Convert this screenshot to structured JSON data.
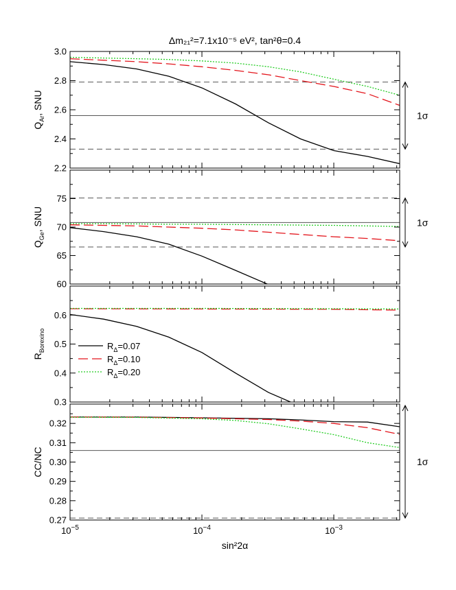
{
  "chart_data": {
    "type": "line",
    "title": "Δm₂₁²=7.1x10⁻⁵ eV², tan²θ=0.4",
    "xlabel": "sin²2α",
    "xscale": "log",
    "xlim": [
      1e-05,
      0.00316
    ],
    "xticks": [
      {
        "value": 1e-05,
        "base": "10",
        "exp": "−5"
      },
      {
        "value": 0.0001,
        "base": "10",
        "exp": "−4"
      },
      {
        "value": 0.001,
        "base": "10",
        "exp": "−3"
      }
    ],
    "legend": {
      "placement": "middle-left of third panel",
      "entries": [
        {
          "label": "R",
          "sub": "Δ",
          "value_text": "=0.07",
          "color": "#000000",
          "dash": "solid"
        },
        {
          "label": "R",
          "sub": "Δ",
          "value_text": "=0.10",
          "color": "#e3141b",
          "dash": "dashed"
        },
        {
          "label": "R",
          "sub": "Δ",
          "value_text": "=0.20",
          "color": "#22cc22",
          "dash": "dotted"
        }
      ]
    },
    "panels": [
      {
        "ylabel_main": "Q",
        "ylabel_sub": "Ar",
        "ylabel_rest": ", SNU",
        "ylim": [
          2.2,
          3.0
        ],
        "yticks": [
          2.2,
          2.4,
          2.6,
          2.8,
          3.0
        ],
        "ytick_labels": [
          "2.2",
          "2.4",
          "2.6",
          "2.8",
          "3.0"
        ],
        "reference": {
          "value": 2.56,
          "low": 2.33,
          "high": 2.79,
          "bar_low": 2.33,
          "bar_high": 2.79,
          "sigma_label": "1σ"
        },
        "series": [
          {
            "name": "R_Δ=0.07",
            "color": "#000000",
            "dash": "solid",
            "x": [
              1e-05,
              1.8e-05,
              3.2e-05,
              5.6e-05,
              0.0001,
              0.00018,
              0.00032,
              0.00056,
              0.001,
              0.0018,
              0.00316
            ],
            "y": [
              2.93,
              2.91,
              2.88,
              2.83,
              2.75,
              2.64,
              2.51,
              2.4,
              2.32,
              2.28,
              2.23
            ]
          },
          {
            "name": "R_Δ=0.10",
            "color": "#e3141b",
            "dash": "dashed",
            "x": [
              1e-05,
              1.8e-05,
              3.2e-05,
              5.6e-05,
              0.0001,
              0.00018,
              0.00032,
              0.00056,
              0.001,
              0.0018,
              0.00316
            ],
            "y": [
              2.95,
              2.94,
              2.93,
              2.915,
              2.895,
              2.87,
              2.84,
              2.8,
              2.76,
              2.71,
              2.63
            ]
          },
          {
            "name": "R_Δ=0.20",
            "color": "#22cc22",
            "dash": "dotted",
            "x": [
              1e-05,
              1.8e-05,
              3.2e-05,
              5.6e-05,
              0.0001,
              0.00018,
              0.00032,
              0.00056,
              0.001,
              0.0018,
              0.00316
            ],
            "y": [
              2.96,
              2.955,
              2.95,
              2.945,
              2.935,
              2.92,
              2.895,
              2.86,
              2.81,
              2.76,
              2.7
            ]
          }
        ]
      },
      {
        "ylabel_main": "Q",
        "ylabel_sub": "Ge",
        "ylabel_rest": ", SNU",
        "ylim": [
          60,
          80
        ],
        "yticks": [
          60,
          65,
          70,
          75
        ],
        "ytick_labels": [
          "60",
          "65",
          "70",
          "75"
        ],
        "reference": {
          "value": 70.8,
          "low": 66.5,
          "high": 75.1,
          "bar_low": 66.5,
          "bar_high": 75.1,
          "sigma_label": "1σ"
        },
        "series": [
          {
            "name": "R_Δ=0.07",
            "color": "#000000",
            "dash": "solid",
            "x": [
              1e-05,
              1.8e-05,
              3.2e-05,
              5.6e-05,
              0.0001,
              0.00018,
              0.00032
            ],
            "y": [
              69.9,
              69.2,
              68.3,
              67.0,
              64.9,
              62.4,
              59.9
            ]
          },
          {
            "name": "R_Δ=0.10",
            "color": "#e3141b",
            "dash": "dashed",
            "x": [
              1e-05,
              1.8e-05,
              3.2e-05,
              5.6e-05,
              0.0001,
              0.00018,
              0.00032,
              0.00056,
              0.001,
              0.0018,
              0.00316
            ],
            "y": [
              70.4,
              70.3,
              70.2,
              70.0,
              69.8,
              69.5,
              69.1,
              68.7,
              68.3,
              68.0,
              67.6
            ]
          },
          {
            "name": "R_Δ=0.20",
            "color": "#22cc22",
            "dash": "dotted",
            "x": [
              1e-05,
              1.8e-05,
              3.2e-05,
              5.6e-05,
              0.0001,
              0.00018,
              0.00032,
              0.00056,
              0.001,
              0.0018,
              0.00316
            ],
            "y": [
              70.6,
              70.6,
              70.55,
              70.5,
              70.5,
              70.45,
              70.4,
              70.35,
              70.3,
              70.2,
              70.1
            ]
          }
        ]
      },
      {
        "ylabel_main": "R",
        "ylabel_sub": "Borexino",
        "ylabel_rest": "",
        "ylim": [
          0.3,
          0.7
        ],
        "yticks": [
          0.3,
          0.4,
          0.5,
          0.6
        ],
        "ytick_labels": [
          "0.3",
          "0.4",
          "0.5",
          "0.6"
        ],
        "reference": null,
        "series": [
          {
            "name": "R_Δ=0.07",
            "color": "#000000",
            "dash": "solid",
            "x": [
              1e-05,
              1.8e-05,
              3.2e-05,
              5.6e-05,
              0.0001,
              0.00018,
              0.00032,
              0.00047
            ],
            "y": [
              0.602,
              0.586,
              0.561,
              0.524,
              0.471,
              0.4,
              0.333,
              0.3
            ]
          },
          {
            "name": "R_Δ=0.10",
            "color": "#e3141b",
            "dash": "dashed",
            "x": [
              1e-05,
              0.0001,
              0.001,
              0.00316
            ],
            "y": [
              0.622,
              0.621,
              0.62,
              0.617
            ]
          },
          {
            "name": "R_Δ=0.20",
            "color": "#22cc22",
            "dash": "dotted",
            "x": [
              1e-05,
              0.0001,
              0.001,
              0.00316
            ],
            "y": [
              0.623,
              0.623,
              0.622,
              0.621
            ]
          }
        ]
      },
      {
        "ylabel_main": "CC/NC",
        "ylabel_sub": "",
        "ylabel_rest": "",
        "ylim": [
          0.27,
          0.33
        ],
        "yticks": [
          0.27,
          0.28,
          0.29,
          0.3,
          0.31,
          0.32
        ],
        "ytick_labels": [
          "0.27",
          "0.28",
          "0.29",
          "0.30",
          "0.31",
          "0.32"
        ],
        "reference": {
          "value": 0.306,
          "low": 0.271,
          "high": null,
          "bar_low": 0.271,
          "bar_high": 0.33,
          "sigma_label": "1σ"
        },
        "series": [
          {
            "name": "R_Δ=0.07",
            "color": "#000000",
            "dash": "solid",
            "x": [
              1e-05,
              3.2e-05,
              0.0001,
              0.00032,
              0.00056,
              0.001,
              0.0018,
              0.00316
            ],
            "y": [
              0.3233,
              0.3233,
              0.3229,
              0.3224,
              0.3218,
              0.3209,
              0.3207,
              0.3183
            ]
          },
          {
            "name": "R_Δ=0.10",
            "color": "#e3141b",
            "dash": "dashed",
            "x": [
              1e-05,
              3.2e-05,
              0.0001,
              0.00032,
              0.00056,
              0.001,
              0.0018,
              0.00316
            ],
            "y": [
              0.3233,
              0.3232,
              0.3228,
              0.322,
              0.3212,
              0.32,
              0.3178,
              0.3143
            ]
          },
          {
            "name": "R_Δ=0.20",
            "color": "#22cc22",
            "dash": "dotted",
            "x": [
              1e-05,
              3.2e-05,
              0.0001,
              0.00018,
              0.00032,
              0.00056,
              0.001,
              0.0018,
              0.00316
            ],
            "y": [
              0.3232,
              0.3231,
              0.3224,
              0.3215,
              0.3198,
              0.3172,
              0.3142,
              0.31,
              0.3075
            ]
          }
        ]
      }
    ]
  }
}
